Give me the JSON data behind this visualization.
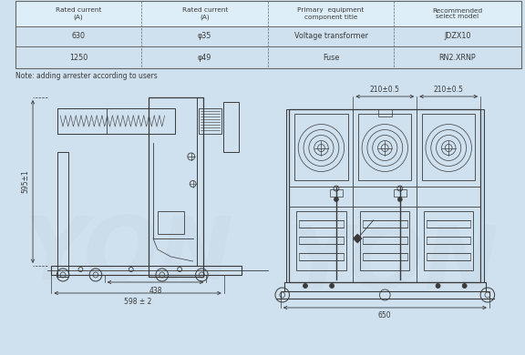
{
  "bg_color": "#cfe0ee",
  "table_bg": "#ddeaf5",
  "table_headers": [
    "Rated current\n(A)",
    "Rated current\n(A)",
    "Primary  equipment\ncomponent title",
    "Recommended\nselect model"
  ],
  "table_rows": [
    [
      "630",
      "φ35",
      "Voltage transformer",
      "JDZX10"
    ],
    [
      "1250",
      "φ49",
      "Fuse",
      "RN2.XRNP"
    ]
  ],
  "note": "Note: adding arrester according to users",
  "dim_left_height": "595±1",
  "dim_left_width1": "438",
  "dim_left_width2": "598 ± 2",
  "dim_right_top1": "210±0.5",
  "dim_right_top2": "210±0.5",
  "dim_right_width": "650",
  "line_color": "#3a3a3a",
  "line_color_light": "#555555",
  "table_line_color": "#666666"
}
